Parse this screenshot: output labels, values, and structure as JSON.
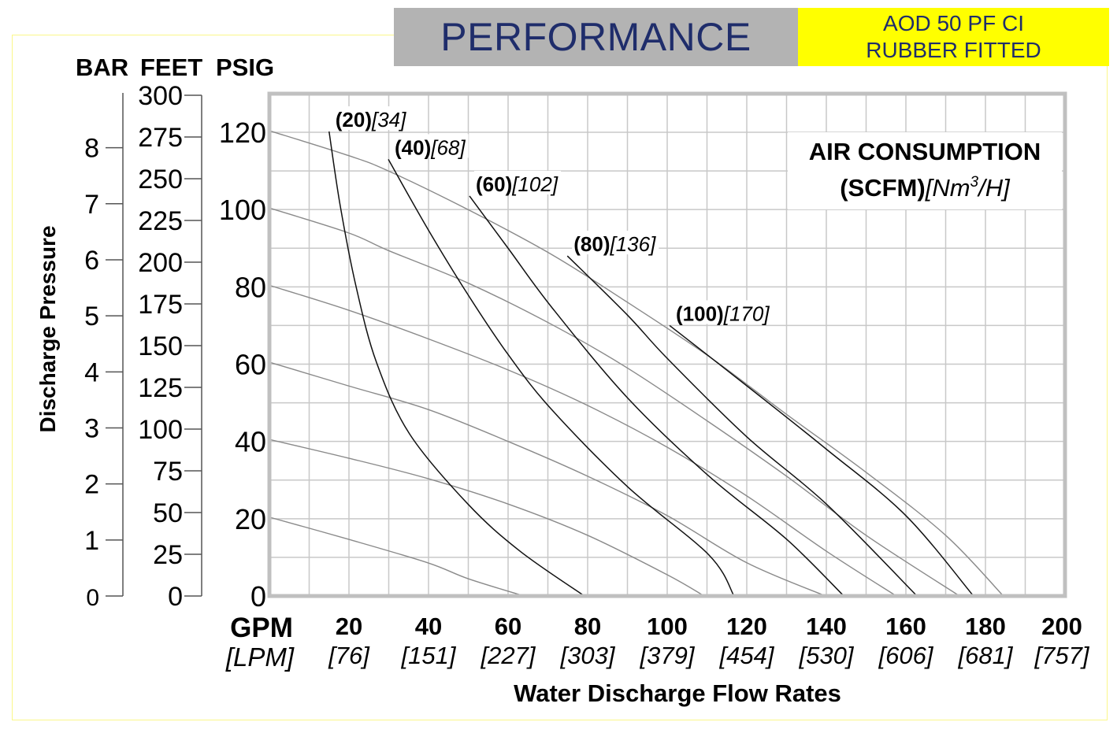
{
  "header": {
    "title": "PERFORMANCE",
    "model_line1": "AOD 50 PF CI",
    "model_line2": "RUBBER FITTED"
  },
  "colors": {
    "title_text": "#1f2d6b",
    "title_bg": "#b3b3b3",
    "model_bg": "#ffff00",
    "frame": "#fbf78a",
    "grid": "#c8c8c8",
    "plot_border": "#c0c0c0",
    "pressure_curve": "#8a8a8a",
    "air_curve": "#111111"
  },
  "chart_data": {
    "type": "line",
    "title": "PERFORMANCE",
    "xlabel": "Water Discharge Flow Rates",
    "ylabel": "Discharge Pressure",
    "x_unit_primary": "GPM",
    "x_unit_secondary": "[LPM]",
    "xlim": [
      0,
      200
    ],
    "ylim": [
      0,
      130
    ],
    "grid": true,
    "x_ticks": [
      {
        "gpm": "20",
        "lpm": "[76]",
        "value": 20
      },
      {
        "gpm": "40",
        "lpm": "[151]",
        "value": 40
      },
      {
        "gpm": "60",
        "lpm": "[227]",
        "value": 60
      },
      {
        "gpm": "80",
        "lpm": "[303]",
        "value": 80
      },
      {
        "gpm": "100",
        "lpm": "[379]",
        "value": 100
      },
      {
        "gpm": "120",
        "lpm": "[454]",
        "value": 120
      },
      {
        "gpm": "140",
        "lpm": "[530]",
        "value": 140
      },
      {
        "gpm": "160",
        "lpm": "[606]",
        "value": 160
      },
      {
        "gpm": "180",
        "lpm": "[681]",
        "value": 180
      },
      {
        "gpm": "200",
        "lpm": "[757]",
        "value": 200
      }
    ],
    "y_axes": {
      "bar": {
        "label": "BAR",
        "ticks": [
          "0",
          "1",
          "2",
          "3",
          "4",
          "5",
          "6",
          "7",
          "8"
        ],
        "psi_per_unit": 14.5
      },
      "feet": {
        "label": "FEET",
        "ticks": [
          "0",
          "25",
          "50",
          "75",
          "100",
          "125",
          "150",
          "175",
          "200",
          "225",
          "250",
          "275",
          "300"
        ],
        "psi_per_unit": 0.4333
      },
      "psig": {
        "label": "PSIG",
        "ticks": [
          "0",
          "20",
          "40",
          "60",
          "80",
          "100",
          "120"
        ]
      }
    },
    "legend_title_line1": "AIR CONSUMPTION",
    "legend_title_line2_bold": "(SCFM)",
    "legend_title_line2_italic": "[Nm",
    "legend_title_sup": "3",
    "legend_title_line2_tail": "/H]",
    "legend_position": "top-right",
    "pressure_series": [
      {
        "name": "120 psi head",
        "points": [
          [
            0,
            120.4
          ],
          [
            19.8,
            114
          ],
          [
            29.9,
            110
          ],
          [
            49.9,
            100
          ],
          [
            70.9,
            88.4
          ],
          [
            90,
            76
          ],
          [
            110.5,
            62
          ],
          [
            130,
            47
          ],
          [
            150,
            32
          ],
          [
            170,
            15.7
          ],
          [
            184.5,
            0
          ]
        ]
      },
      {
        "name": "100 psi head",
        "points": [
          [
            0,
            100.4
          ],
          [
            19.8,
            94
          ],
          [
            29.9,
            89.4
          ],
          [
            49.9,
            81
          ],
          [
            70.9,
            70.3
          ],
          [
            90,
            59
          ],
          [
            110.5,
            45
          ],
          [
            130,
            31
          ],
          [
            150,
            15.7
          ],
          [
            173.5,
            0
          ]
        ]
      },
      {
        "name": "80 psi head",
        "points": [
          [
            0,
            80.4
          ],
          [
            19.8,
            74
          ],
          [
            39.8,
            66.6
          ],
          [
            60,
            58.5
          ],
          [
            80,
            49.3
          ],
          [
            100,
            38.5
          ],
          [
            120,
            25.9
          ],
          [
            140,
            11.6
          ],
          [
            157.6,
            0
          ]
        ]
      },
      {
        "name": "60 psi head",
        "points": [
          [
            0,
            60.5
          ],
          [
            19.8,
            54.4
          ],
          [
            39.8,
            48.3
          ],
          [
            60,
            40
          ],
          [
            80,
            31
          ],
          [
            100,
            20.8
          ],
          [
            120,
            8.6
          ],
          [
            139.8,
            0
          ]
        ]
      },
      {
        "name": "40 psi head",
        "points": [
          [
            0,
            40.5
          ],
          [
            19.8,
            35.7
          ],
          [
            39.8,
            30.4
          ],
          [
            60,
            23.8
          ],
          [
            80,
            15.7
          ],
          [
            100,
            5.5
          ],
          [
            109.3,
            0
          ]
        ]
      },
      {
        "name": "20 psi head",
        "points": [
          [
            0,
            20.4
          ],
          [
            19.8,
            14.7
          ],
          [
            39.8,
            8.6
          ],
          [
            49.9,
            4.5
          ],
          [
            64,
            0
          ]
        ]
      }
    ],
    "air_series": [
      {
        "scfm": "(20)",
        "nm3h": "[34]",
        "points": [
          [
            15,
            120.2
          ],
          [
            17.8,
            101
          ],
          [
            21.8,
            80
          ],
          [
            26.9,
            60.5
          ],
          [
            35.2,
            42
          ],
          [
            49.9,
            23.8
          ],
          [
            63,
            11.6
          ],
          [
            79.2,
            0
          ]
        ]
      },
      {
        "scfm": "(40)",
        "nm3h": "[68]",
        "points": [
          [
            29.9,
            113
          ],
          [
            39.8,
            95
          ],
          [
            49.9,
            78
          ],
          [
            60,
            62.5
          ],
          [
            70.9,
            48.3
          ],
          [
            90,
            28.3
          ],
          [
            110.5,
            10.6
          ],
          [
            116.8,
            0
          ]
        ]
      },
      {
        "scfm": "(60)",
        "nm3h": "[102]",
        "points": [
          [
            50.3,
            103.5
          ],
          [
            60,
            90
          ],
          [
            70.9,
            74.8
          ],
          [
            90,
            51.3
          ],
          [
            110.5,
            31
          ],
          [
            130,
            14.7
          ],
          [
            144.4,
            0
          ]
        ]
      },
      {
        "scfm": "(80)",
        "nm3h": "[136]",
        "points": [
          [
            74.9,
            88
          ],
          [
            90,
            72.7
          ],
          [
            100,
            61.5
          ],
          [
            120,
            41.2
          ],
          [
            140,
            23.8
          ],
          [
            162.8,
            0
          ]
        ]
      },
      {
        "scfm": "(100)",
        "nm3h": "[170]",
        "points": [
          [
            100.6,
            70
          ],
          [
            120,
            54.4
          ],
          [
            140,
            38
          ],
          [
            160,
            20.8
          ],
          [
            177,
            0
          ]
        ]
      }
    ]
  }
}
